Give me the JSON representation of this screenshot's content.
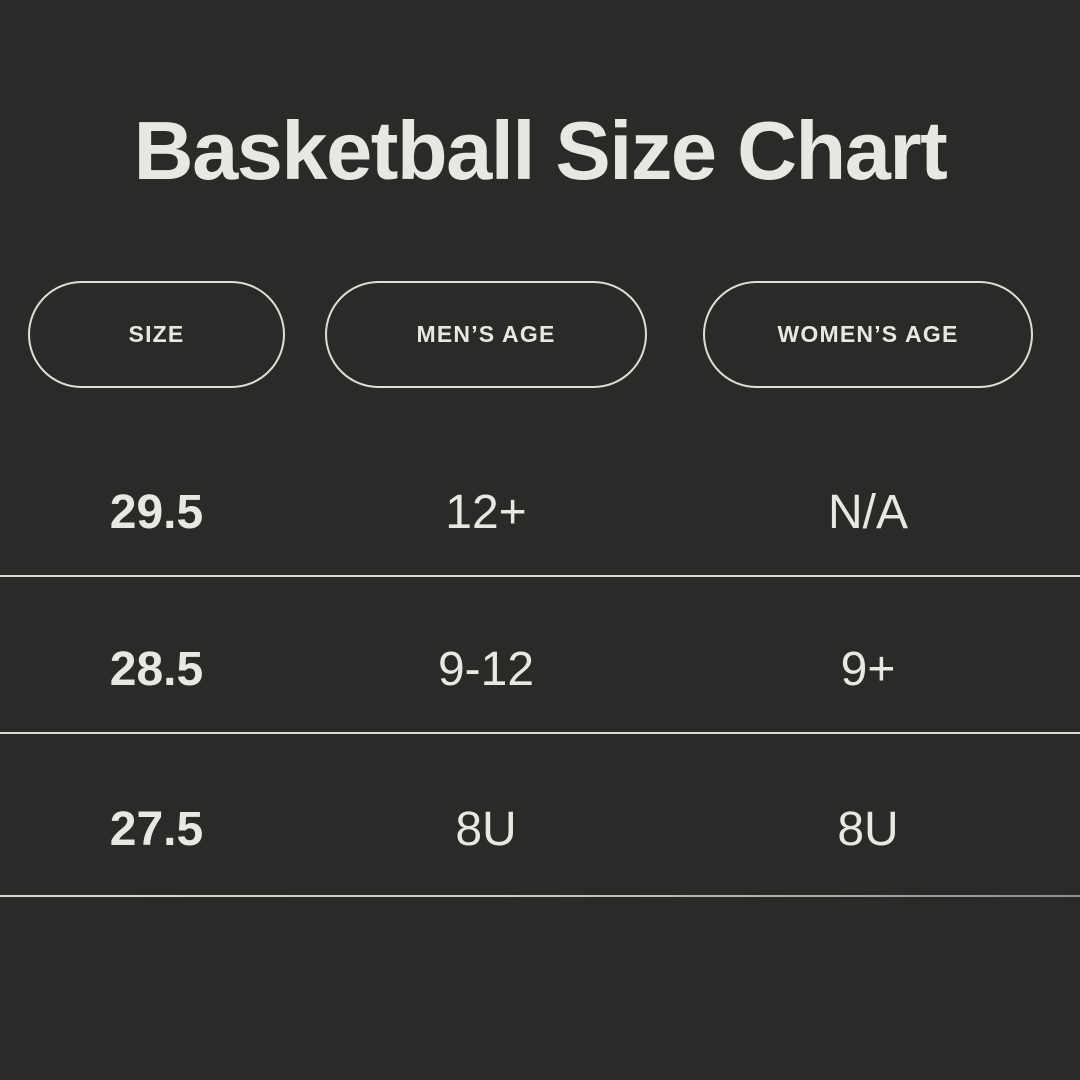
{
  "title": "Basketball Size Chart",
  "colors": {
    "background": "#2a2a29",
    "text": "#e9e7e1",
    "divider": "#dcdad4",
    "pill_border": "#dfddd7"
  },
  "chart_data": {
    "type": "table",
    "title": "Basketball Size Chart",
    "columns": [
      "SIZE",
      "MEN’S AGE",
      "WOMEN’S AGE"
    ],
    "rows": [
      [
        "29.5",
        "12+",
        "N/A"
      ],
      [
        "28.5",
        "9-12",
        "9+"
      ],
      [
        "27.5",
        "8U",
        "8U"
      ]
    ]
  }
}
